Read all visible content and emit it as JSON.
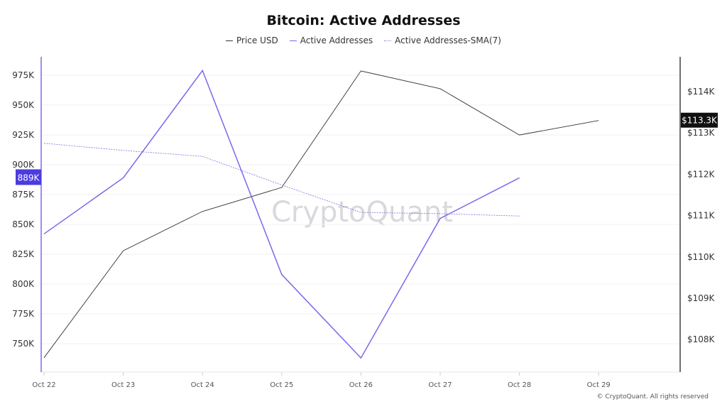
{
  "chart_data": {
    "type": "line",
    "title": "Bitcoin: Active Addresses",
    "categories": [
      "Oct 22",
      "Oct 23",
      "Oct 24",
      "Oct 25",
      "Oct 26",
      "Oct 27",
      "Oct 28",
      "Oct 29"
    ],
    "left_axis": {
      "ticks": [
        "750K",
        "775K",
        "800K",
        "825K",
        "850K",
        "875K",
        "900K",
        "925K",
        "950K",
        "975K"
      ],
      "tick_values": [
        750,
        775,
        800,
        825,
        850,
        875,
        900,
        925,
        950,
        975
      ],
      "unit": "K",
      "range": [
        725,
        985
      ]
    },
    "right_axis": {
      "ticks": [
        "$108K",
        "$109K",
        "$110K",
        "$111K",
        "$112K",
        "$113K",
        "$114K"
      ],
      "tick_values": [
        108,
        109,
        110,
        111,
        112,
        113,
        114
      ],
      "unit": "$K",
      "range": [
        107.2,
        114.9
      ]
    },
    "series": [
      {
        "name": "Price USD",
        "axis": "right",
        "color": "#333333",
        "style": "solid",
        "values": [
          107.56,
          110.15,
          111.1,
          111.68,
          114.5,
          114.07,
          112.95,
          113.3
        ]
      },
      {
        "name": "Active Addresses",
        "axis": "left",
        "color": "#7b68ee",
        "style": "solid",
        "values": [
          842,
          889,
          979,
          808,
          738,
          855,
          889,
          null
        ]
      },
      {
        "name": "Active Addresses-SMA(7)",
        "axis": "left",
        "color": "#8a7fe0",
        "style": "dotted",
        "values": [
          918,
          912,
          907,
          883,
          860,
          859,
          857,
          null
        ]
      }
    ],
    "current_labels": {
      "left": "889K",
      "right": "$113.3K"
    },
    "grid": true,
    "legend_position": "top"
  },
  "watermark": "CryptoQuant",
  "footer": "© CryptoQuant. All rights reserved"
}
